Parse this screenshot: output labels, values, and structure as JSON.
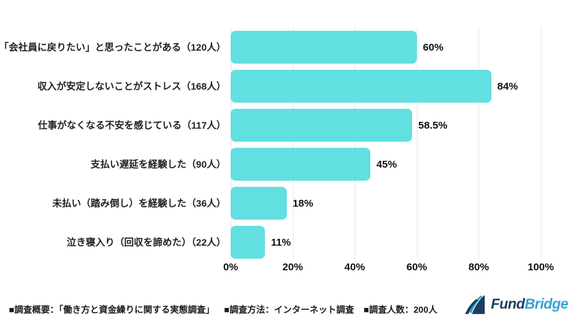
{
  "chart_data": {
    "type": "bar",
    "orientation": "horizontal",
    "title": "",
    "categories": [
      "「会社員に戻りたい」と思ったことがある（120人）",
      "収入が安定しないことがストレス（168人）",
      "仕事がなくなる不安を感じている（117人）",
      "支払い遅延を経験した（90人）",
      "未払い（踏み倒し）を経験した（36人）",
      "泣き寝入り（回収を諦めた）（22人）"
    ],
    "respondent_counts": [
      120,
      168,
      117,
      90,
      36,
      22
    ],
    "values": [
      60,
      84,
      58.5,
      45,
      18,
      11
    ],
    "value_labels": [
      "60%",
      "84%",
      "58.5%",
      "45%",
      "18%",
      "11%"
    ],
    "xlim": [
      0,
      100
    ],
    "x_ticks": [
      "0%",
      "20%",
      "40%",
      "60%",
      "80%",
      "100%"
    ],
    "x_tick_values": [
      0,
      20,
      40,
      60,
      80,
      100
    ],
    "grid": "vertical",
    "legend": "none",
    "bar_color": "#62dfe1",
    "gridline_color": "#e7e7e7",
    "text_color": "#111111"
  },
  "footer": {
    "survey_overview": "■調査概要：「働き方と資金繰りに関する実態調査」",
    "survey_method": "■調査方法：インターネット調査",
    "survey_size": "■調査人数：200人"
  },
  "logo": {
    "fund": "Fund",
    "bridge": "Bridge",
    "fund_color": "#1d3e5e",
    "bridge_color": "#35a3d6"
  }
}
